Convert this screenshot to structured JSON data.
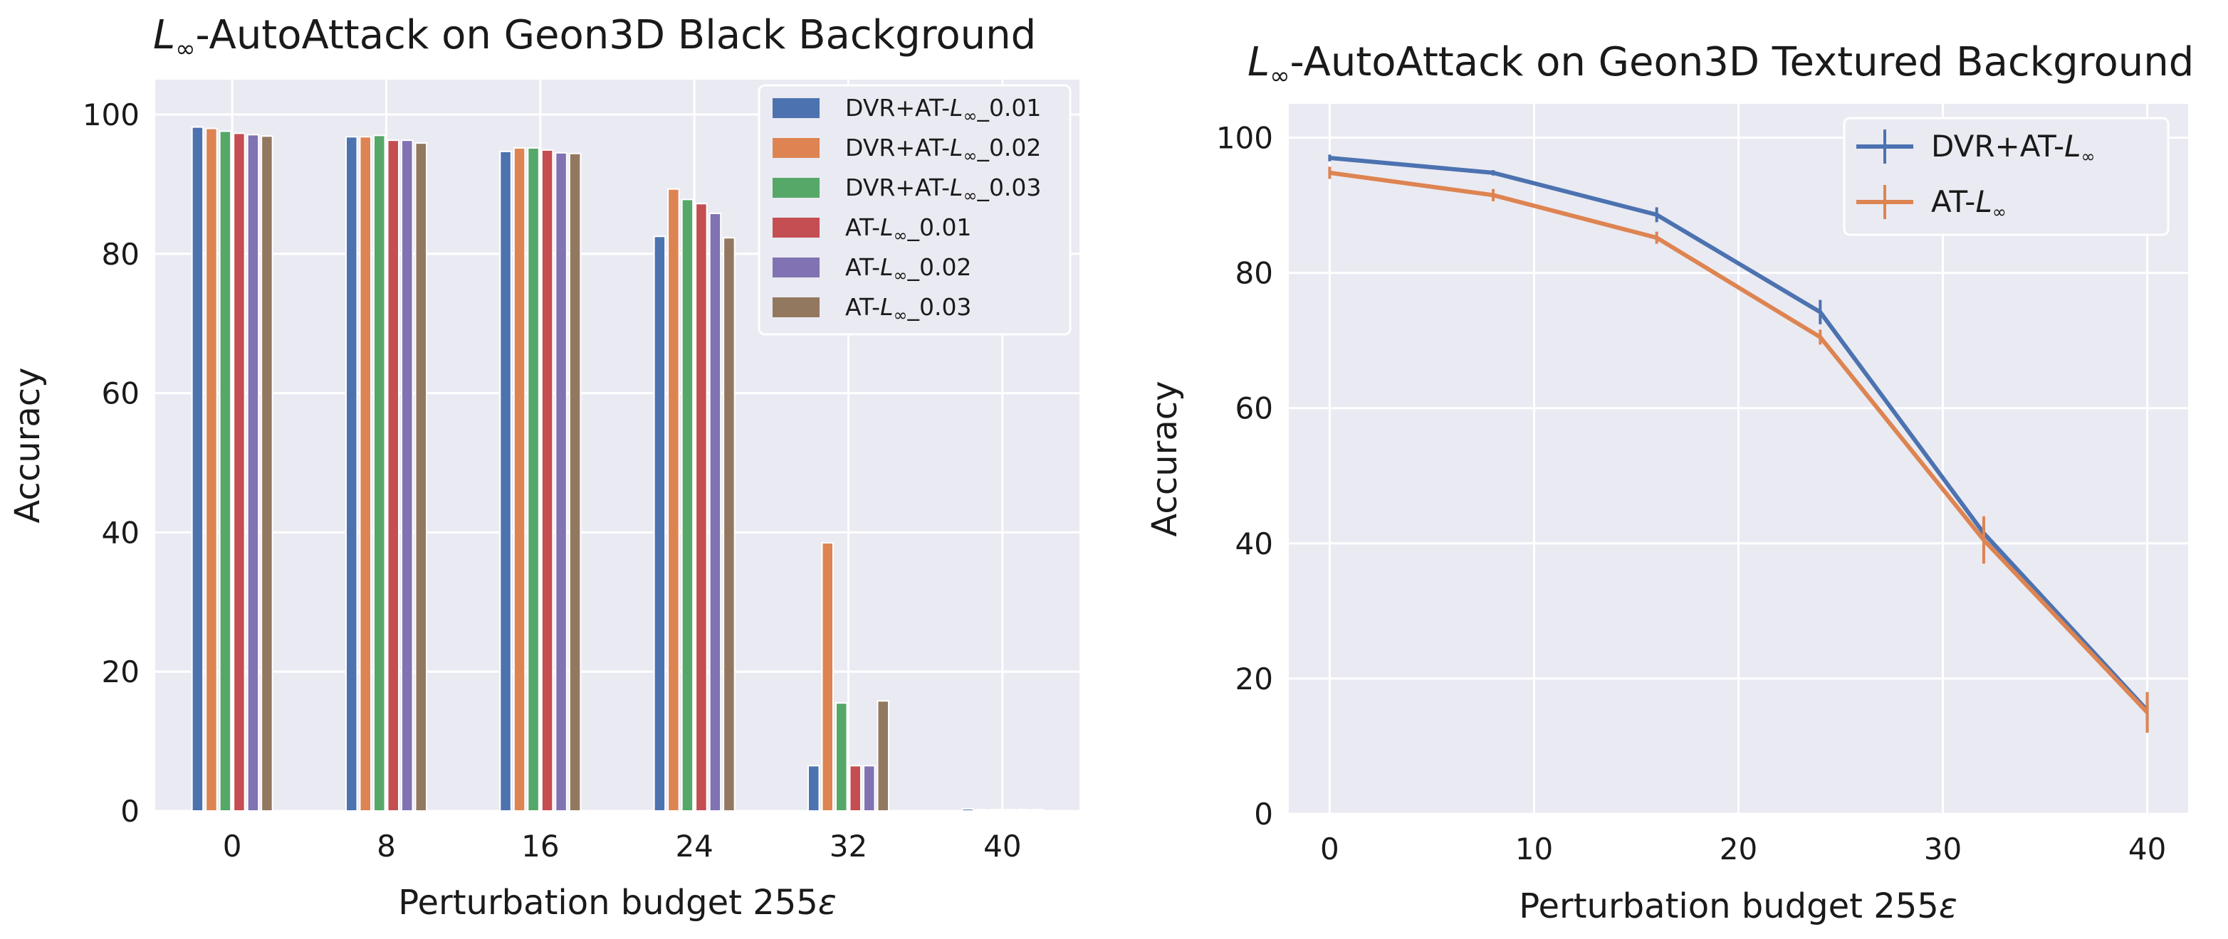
{
  "chart_data": [
    {
      "type": "bar",
      "title": "L∞-AutoAttack on Geon3D Black Background",
      "title_symbol": "L",
      "title_subscript": "∞",
      "title_rest": "-AutoAttack on Geon3D Black Background",
      "xlabel": "Perturbation budget 255ε",
      "xlabel_main": "Perturbation budget 255",
      "xlabel_symbol": "ε",
      "ylabel": "Accuracy",
      "ylim": [
        0,
        105
      ],
      "yticks": [
        "0",
        "20",
        "40",
        "60",
        "80",
        "100"
      ],
      "categories": [
        "0",
        "8",
        "16",
        "24",
        "32",
        "40"
      ],
      "legend_position": "top-right",
      "series": [
        {
          "name": "DVR+AT-L∞_0.01",
          "label_prefix": "DVR+AT-",
          "label_suffix": "_0.01",
          "color": "#4c72b0",
          "values": [
            98.2,
            96.8,
            94.7,
            82.5,
            6.5,
            0.3
          ]
        },
        {
          "name": "DVR+AT-L∞_0.02",
          "label_prefix": "DVR+AT-",
          "label_suffix": "_0.02",
          "color": "#dd8452",
          "values": [
            98.0,
            96.8,
            95.2,
            89.3,
            38.5,
            0.2
          ]
        },
        {
          "name": "DVR+AT-L∞_0.03",
          "label_prefix": "DVR+AT-",
          "label_suffix": "_0.03",
          "color": "#55a868",
          "values": [
            97.6,
            97.0,
            95.2,
            87.8,
            15.5,
            0.2
          ]
        },
        {
          "name": "AT-L∞_0.01",
          "label_prefix": "AT-",
          "label_suffix": "_0.01",
          "color": "#c44e52",
          "values": [
            97.3,
            96.3,
            94.9,
            87.2,
            6.5,
            0.2
          ]
        },
        {
          "name": "AT-L∞_0.02",
          "label_prefix": "AT-",
          "label_suffix": "_0.02",
          "color": "#8172b3",
          "values": [
            97.1,
            96.3,
            94.5,
            85.8,
            6.5,
            0.2
          ]
        },
        {
          "name": "AT-L∞_0.03",
          "label_prefix": "AT-",
          "label_suffix": "_0.03",
          "color": "#937860",
          "values": [
            96.9,
            95.9,
            94.4,
            82.3,
            15.8,
            0.2
          ]
        }
      ]
    },
    {
      "type": "line",
      "title": "L∞-AutoAttack on Geon3D Textured Background",
      "title_symbol": "L",
      "title_subscript": "∞",
      "title_rest": "-AutoAttack on Geon3D Textured Background",
      "xlabel": "Perturbation budget 255ε",
      "xlabel_main": "Perturbation budget 255",
      "xlabel_symbol": "ε",
      "ylabel": "Accuracy",
      "xlim": [
        -2,
        42
      ],
      "ylim": [
        0,
        105
      ],
      "xticks": [
        "0",
        "10",
        "20",
        "30",
        "40"
      ],
      "yticks": [
        "0",
        "20",
        "40",
        "60",
        "80",
        "100"
      ],
      "legend_position": "top-right",
      "x": [
        0,
        8,
        16,
        24,
        32,
        40
      ],
      "series": [
        {
          "name": "DVR+AT-L∞",
          "label_prefix": "DVR+AT-",
          "color": "#4c72b0",
          "values": [
            97.0,
            94.8,
            88.6,
            74.2,
            41.5,
            15.3
          ],
          "errors": [
            0.5,
            0.4,
            1.1,
            1.8,
            1.5,
            1.5
          ]
        },
        {
          "name": "AT-L∞",
          "label_prefix": "AT-",
          "color": "#dd8452",
          "values": [
            94.8,
            91.5,
            85.2,
            70.5,
            40.5,
            15.0
          ],
          "errors": [
            0.9,
            0.9,
            0.9,
            1.1,
            3.5,
            3.0
          ]
        }
      ]
    }
  ]
}
